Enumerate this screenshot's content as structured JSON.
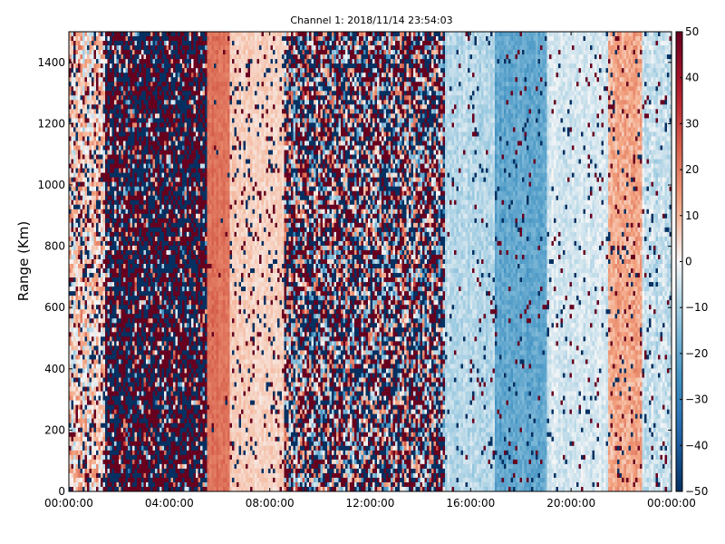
{
  "chart_data": {
    "type": "heatmap",
    "title": "Channel 1: 2018/11/14 23:54:03",
    "xlabel": "",
    "ylabel": "Range (Km)",
    "xlim_hours": [
      0,
      24
    ],
    "ylim": [
      0,
      1500
    ],
    "x_ticks": [
      {
        "value_hours": 0,
        "label": "00:00:00"
      },
      {
        "value_hours": 4,
        "label": "04:00:00"
      },
      {
        "value_hours": 8,
        "label": "08:00:00"
      },
      {
        "value_hours": 12,
        "label": "12:00:00"
      },
      {
        "value_hours": 16,
        "label": "16:00:00"
      },
      {
        "value_hours": 20,
        "label": "20:00:00"
      },
      {
        "value_hours": 24,
        "label": "00:00:00"
      }
    ],
    "y_ticks": [
      0,
      200,
      400,
      600,
      800,
      1000,
      1200,
      1400
    ],
    "colorbar": {
      "colormap": "RdBu_r",
      "vmin": -50,
      "vmax": 50,
      "ticks": [
        50,
        40,
        30,
        20,
        10,
        0,
        -10,
        -20,
        -30,
        -40,
        -50
      ]
    },
    "band_profile_hours": [
      {
        "start": 0.0,
        "end": 1.4,
        "mean": 5,
        "spread": 25,
        "speckle": 0.25
      },
      {
        "start": 1.4,
        "end": 5.5,
        "mean": 0,
        "spread": 50,
        "speckle": 0.85
      },
      {
        "start": 5.5,
        "end": 6.4,
        "mean": 22,
        "spread": 6,
        "speckle": 0.02
      },
      {
        "start": 6.4,
        "end": 8.6,
        "mean": 6,
        "spread": 6,
        "speckle": 0.12
      },
      {
        "start": 8.6,
        "end": 15.0,
        "mean": 0,
        "spread": 50,
        "speckle": 0.55
      },
      {
        "start": 15.0,
        "end": 17.0,
        "mean": -8,
        "spread": 8,
        "speckle": 0.05
      },
      {
        "start": 17.0,
        "end": 19.0,
        "mean": -20,
        "spread": 8,
        "speckle": 0.06
      },
      {
        "start": 19.0,
        "end": 21.5,
        "mean": -4,
        "spread": 7,
        "speckle": 0.06
      },
      {
        "start": 21.5,
        "end": 22.8,
        "mean": 12,
        "spread": 12,
        "speckle": 0.08
      },
      {
        "start": 22.8,
        "end": 24.0,
        "mean": -6,
        "spread": 10,
        "speckle": 0.08
      }
    ],
    "grid": false,
    "legend": "colorbar-right"
  }
}
